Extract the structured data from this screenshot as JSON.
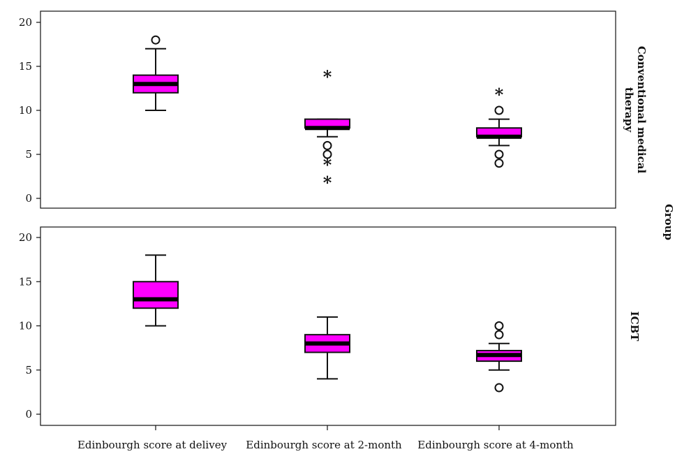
{
  "chart_data": {
    "type": "boxplot",
    "categories": [
      "Edinbourgh score at delivey",
      "Edinbourgh score at 2-month",
      "Edinbourgh score at 4-month"
    ],
    "ylim": [
      0,
      20
    ],
    "yticks": [
      0,
      5,
      10,
      15,
      20
    ],
    "group_label": "Group",
    "box_color": "#ff00ff",
    "median_color": "#000000",
    "panels": [
      {
        "group": "Conventional medical therapy",
        "boxes": [
          {
            "whisker_low": 10,
            "q1": 12,
            "median": 13,
            "q3": 14,
            "whisker_high": 17,
            "outliers": [
              18
            ],
            "extremes": []
          },
          {
            "whisker_low": 7,
            "q1": 8,
            "median": 8,
            "q3": 9,
            "whisker_high": 9,
            "outliers": [
              6,
              5
            ],
            "extremes": [
              14,
              4,
              2
            ]
          },
          {
            "whisker_low": 6,
            "q1": 7,
            "median": 7,
            "q3": 8,
            "whisker_high": 9,
            "outliers": [
              10,
              5,
              4
            ],
            "extremes": [
              12
            ]
          }
        ]
      },
      {
        "group": "ICBT",
        "boxes": [
          {
            "whisker_low": 10,
            "q1": 12,
            "median": 13,
            "q3": 15,
            "whisker_high": 18,
            "outliers": [],
            "extremes": []
          },
          {
            "whisker_low": 4,
            "q1": 7,
            "median": 8,
            "q3": 9,
            "whisker_high": 11,
            "outliers": [],
            "extremes": []
          },
          {
            "whisker_low": 5,
            "q1": 6,
            "median": 6.7,
            "q3": 7.2,
            "whisker_high": 8,
            "outliers": [
              10,
              9,
              3
            ],
            "extremes": []
          }
        ]
      }
    ]
  }
}
